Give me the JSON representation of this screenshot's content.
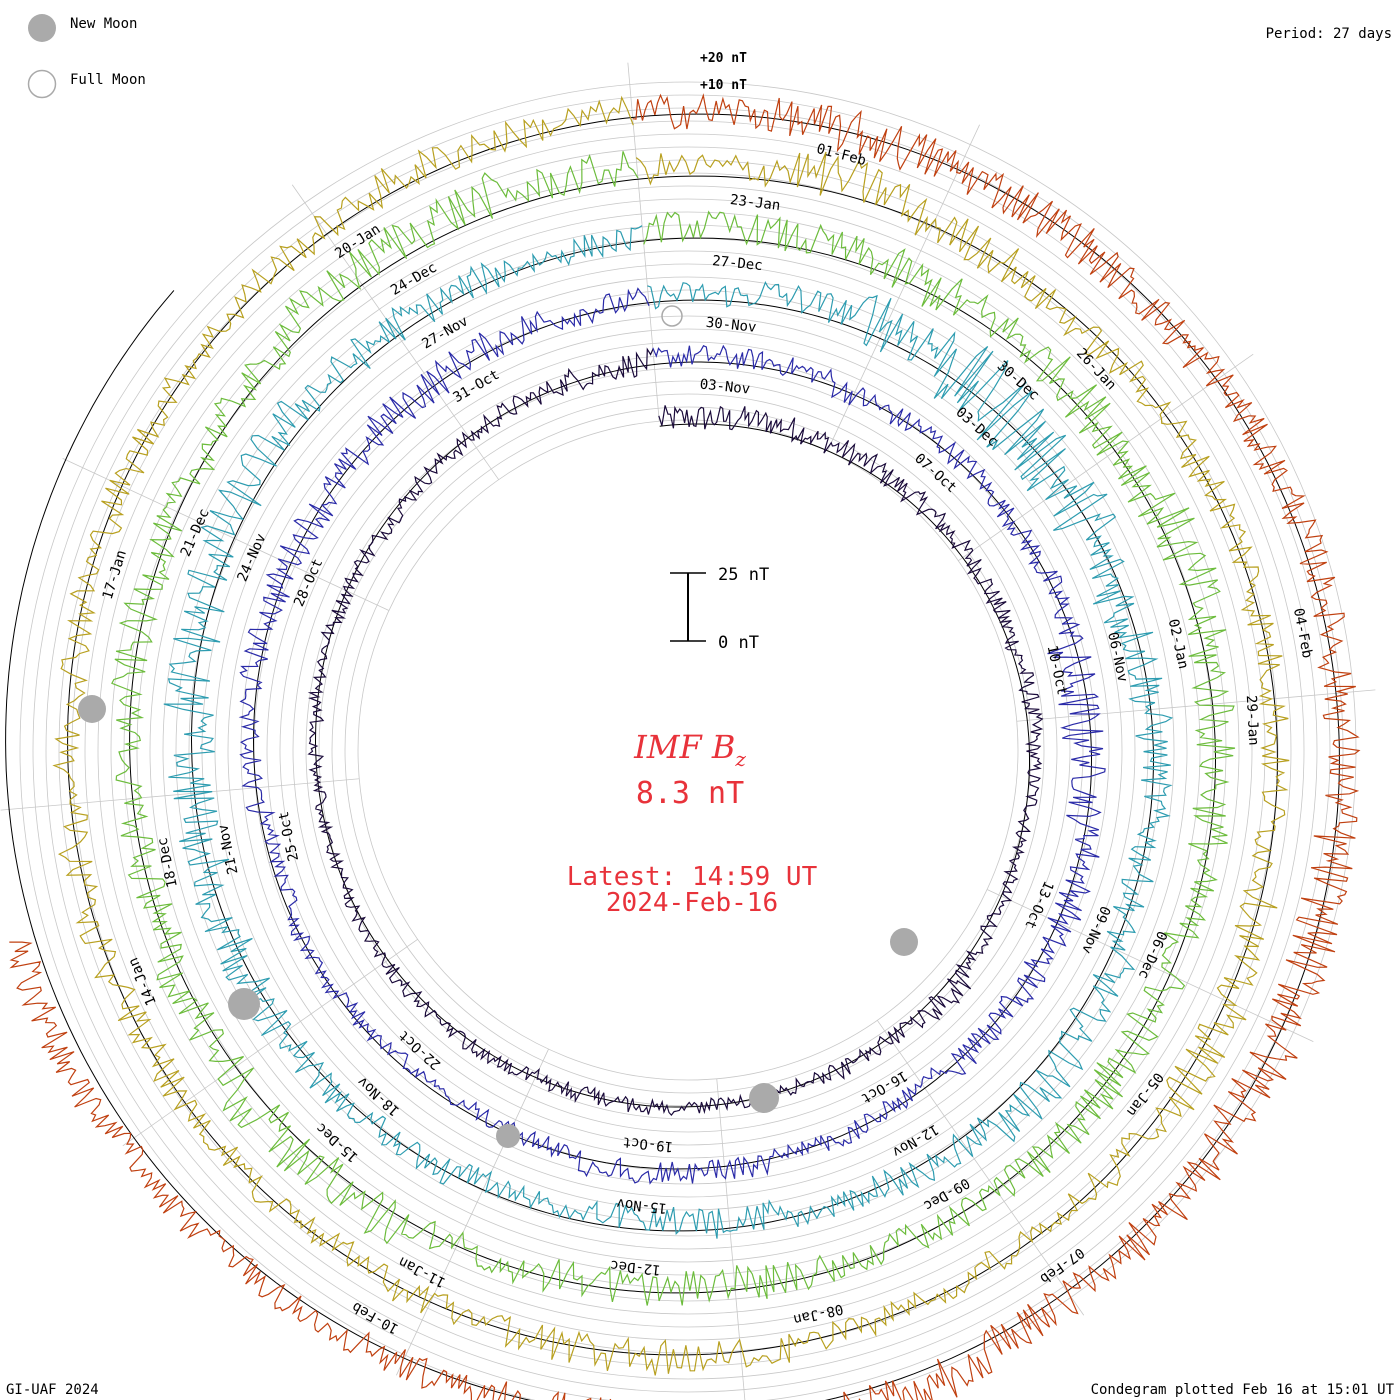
{
  "period_label": "Period: 27 days",
  "footer_left": "GI-UAF 2024",
  "footer_right": "Condegram plotted Feb 16 at 15:01 UT",
  "legend": {
    "new_moon": "New Moon",
    "full_moon": "Full Moon",
    "new_moon_color": "#aaaaaa",
    "full_moon_color": "#aaaaaa"
  },
  "center": {
    "title_main": "IMF B",
    "title_sub": "z",
    "value": "8.3 nT",
    "latest": "Latest: 14:59 UT",
    "date": "2024-Feb-16",
    "color": "#e8323a"
  },
  "scale_bar": {
    "top_label": "25 nT",
    "bottom_label": "0 nT"
  },
  "chart_data": {
    "type": "line",
    "subtype": "spiral condegram",
    "period_days": 27,
    "ref_labels": [
      "+20 nT",
      "+10 nT"
    ],
    "cycles": [
      {
        "color": "#1a0a3a",
        "dates": [],
        "amp": [
          0.55,
          0.48,
          0.45,
          0.42,
          0.4,
          0.38,
          0.36,
          0.3,
          0.28,
          0.3,
          0.5,
          0.35,
          0.3,
          0.28,
          0.3,
          0.35,
          0.3,
          0.3,
          0.28,
          0.25,
          0.28,
          0.3,
          0.3,
          0.32,
          0.34,
          0.4,
          0.5
        ],
        "offs": [
          0.2,
          0.3,
          0.25,
          0.2,
          0.2,
          0.15,
          0.2,
          0.15,
          0.05,
          0.1,
          0.3,
          0.1,
          0.0,
          0.0,
          0.05,
          0.0,
          0.1,
          0.1,
          0.05,
          0.0,
          0.0,
          0.1,
          0.0,
          -0.1,
          -0.05,
          0.05,
          0.1
        ]
      },
      {
        "color": "#2a2aa8",
        "dates": [
          "03-Nov",
          "07-Oct",
          "10-Oct",
          "13-Oct",
          "16-Oct",
          "19-Oct",
          "22-Oct",
          "25-Oct",
          "28-Oct",
          "31-Oct"
        ],
        "amp": [
          0.45,
          0.4,
          0.45,
          0.42,
          0.4,
          0.5,
          0.9,
          0.7,
          0.6,
          0.6,
          0.5,
          0.35,
          0.4,
          0.45,
          0.5,
          0.35,
          0.3,
          0.35,
          0.3,
          0.3,
          0.4,
          0.5,
          0.6,
          0.6,
          0.7,
          0.6,
          0.5
        ],
        "offs": [
          0.2,
          0.2,
          0.0,
          0.1,
          0.0,
          0.0,
          -0.3,
          -0.1,
          0.2,
          0.1,
          0.1,
          -0.1,
          0.0,
          0.1,
          0.2,
          -0.1,
          -0.2,
          -0.1,
          0.0,
          -0.2,
          0.1,
          0.2,
          0.1,
          0.0,
          0.1,
          0.2,
          0.1
        ]
      },
      {
        "color": "#2d9cb0",
        "dates": [
          "30-Nov",
          "03-Dec",
          "06-Nov",
          "09-Nov",
          "12-Nov",
          "15-Nov",
          "18-Nov",
          "21-Nov",
          "24-Nov",
          "27-Nov"
        ],
        "amp": [
          0.5,
          0.6,
          1.2,
          1.6,
          1.3,
          1.0,
          0.8,
          0.6,
          0.6,
          0.7,
          0.8,
          0.6,
          0.5,
          0.6,
          0.5,
          0.4,
          0.5,
          0.6,
          0.8,
          0.9,
          1.0,
          1.0,
          0.9,
          0.8,
          0.7,
          0.6,
          0.5
        ],
        "offs": [
          0.2,
          0.4,
          0.6,
          0.2,
          0.0,
          -0.2,
          0.0,
          0.1,
          0.0,
          0.3,
          0.6,
          0.2,
          0.0,
          -0.2,
          -0.4,
          -0.3,
          0.0,
          0.1,
          0.1,
          0.0,
          0.0,
          0.2,
          0.4,
          0.5,
          0.3,
          0.2,
          0.1
        ]
      },
      {
        "color": "#6cbc3c",
        "dates": [
          "27-Dec",
          "30-Dec",
          "02-Jan",
          "06-Dec",
          "09-Dec",
          "12-Dec",
          "15-Dec",
          "18-Dec",
          "21-Dec",
          "24-Dec"
        ],
        "amp": [
          0.6,
          0.7,
          0.9,
          0.8,
          0.9,
          1.0,
          0.9,
          0.8,
          0.7,
          0.8,
          0.7,
          0.6,
          0.6,
          0.8,
          0.7,
          0.6,
          0.9,
          1.0,
          0.8,
          0.7,
          0.6,
          0.7,
          0.6,
          0.6,
          0.8,
          0.9,
          0.7
        ],
        "offs": [
          0.4,
          0.3,
          0.2,
          0.3,
          0.2,
          0.3,
          0.1,
          0.0,
          -0.1,
          0.0,
          0.2,
          0.0,
          -0.1,
          -0.2,
          -0.1,
          0.0,
          0.3,
          0.4,
          0.2,
          0.0,
          0.0,
          0.1,
          0.1,
          0.2,
          0.5,
          0.6,
          0.4
        ]
      },
      {
        "color": "#b8a020",
        "dates": [
          "23-Jan",
          "26-Jan",
          "29-Jan",
          "05-Jan",
          "08-Jan",
          "11-Jan",
          "14-Jan",
          "17-Jan",
          "20-Jan"
        ],
        "amp": [
          0.6,
          0.9,
          0.8,
          0.6,
          0.6,
          0.6,
          0.6,
          0.6,
          0.7,
          0.8,
          0.6,
          0.5,
          0.5,
          0.6,
          0.7,
          0.6,
          0.5,
          0.5,
          0.6,
          0.6,
          0.6,
          0.6,
          0.6,
          0.5,
          0.6,
          0.7,
          0.6
        ],
        "offs": [
          0.3,
          0.5,
          0.1,
          -0.2,
          0.0,
          0.1,
          0.0,
          -0.1,
          0.0,
          0.2,
          0.0,
          -0.1,
          0.0,
          0.1,
          0.1,
          0.0,
          -0.1,
          0.0,
          0.0,
          0.1,
          0.0,
          0.0,
          0.0,
          0.1,
          0.2,
          0.3,
          0.2
        ]
      },
      {
        "color": "#c04010",
        "dates": [
          "01-Feb",
          "04-Feb",
          "07-Feb",
          "10-Feb"
        ],
        "amp": [
          0.7,
          0.9,
          0.8,
          0.7,
          0.6,
          0.6,
          0.7,
          0.9,
          1.0,
          0.8,
          0.7,
          0.9,
          0.8,
          0.7,
          0.6,
          0.5,
          0.5,
          0.6
        ],
        "offs": [
          0.1,
          0.0,
          0.0,
          -0.1,
          0.1,
          0.2,
          0.1,
          0.0,
          0.1,
          0.2,
          0.2,
          0.6,
          0.4,
          0.1,
          0.2,
          0.3,
          0.4,
          0.6
        ]
      }
    ]
  }
}
